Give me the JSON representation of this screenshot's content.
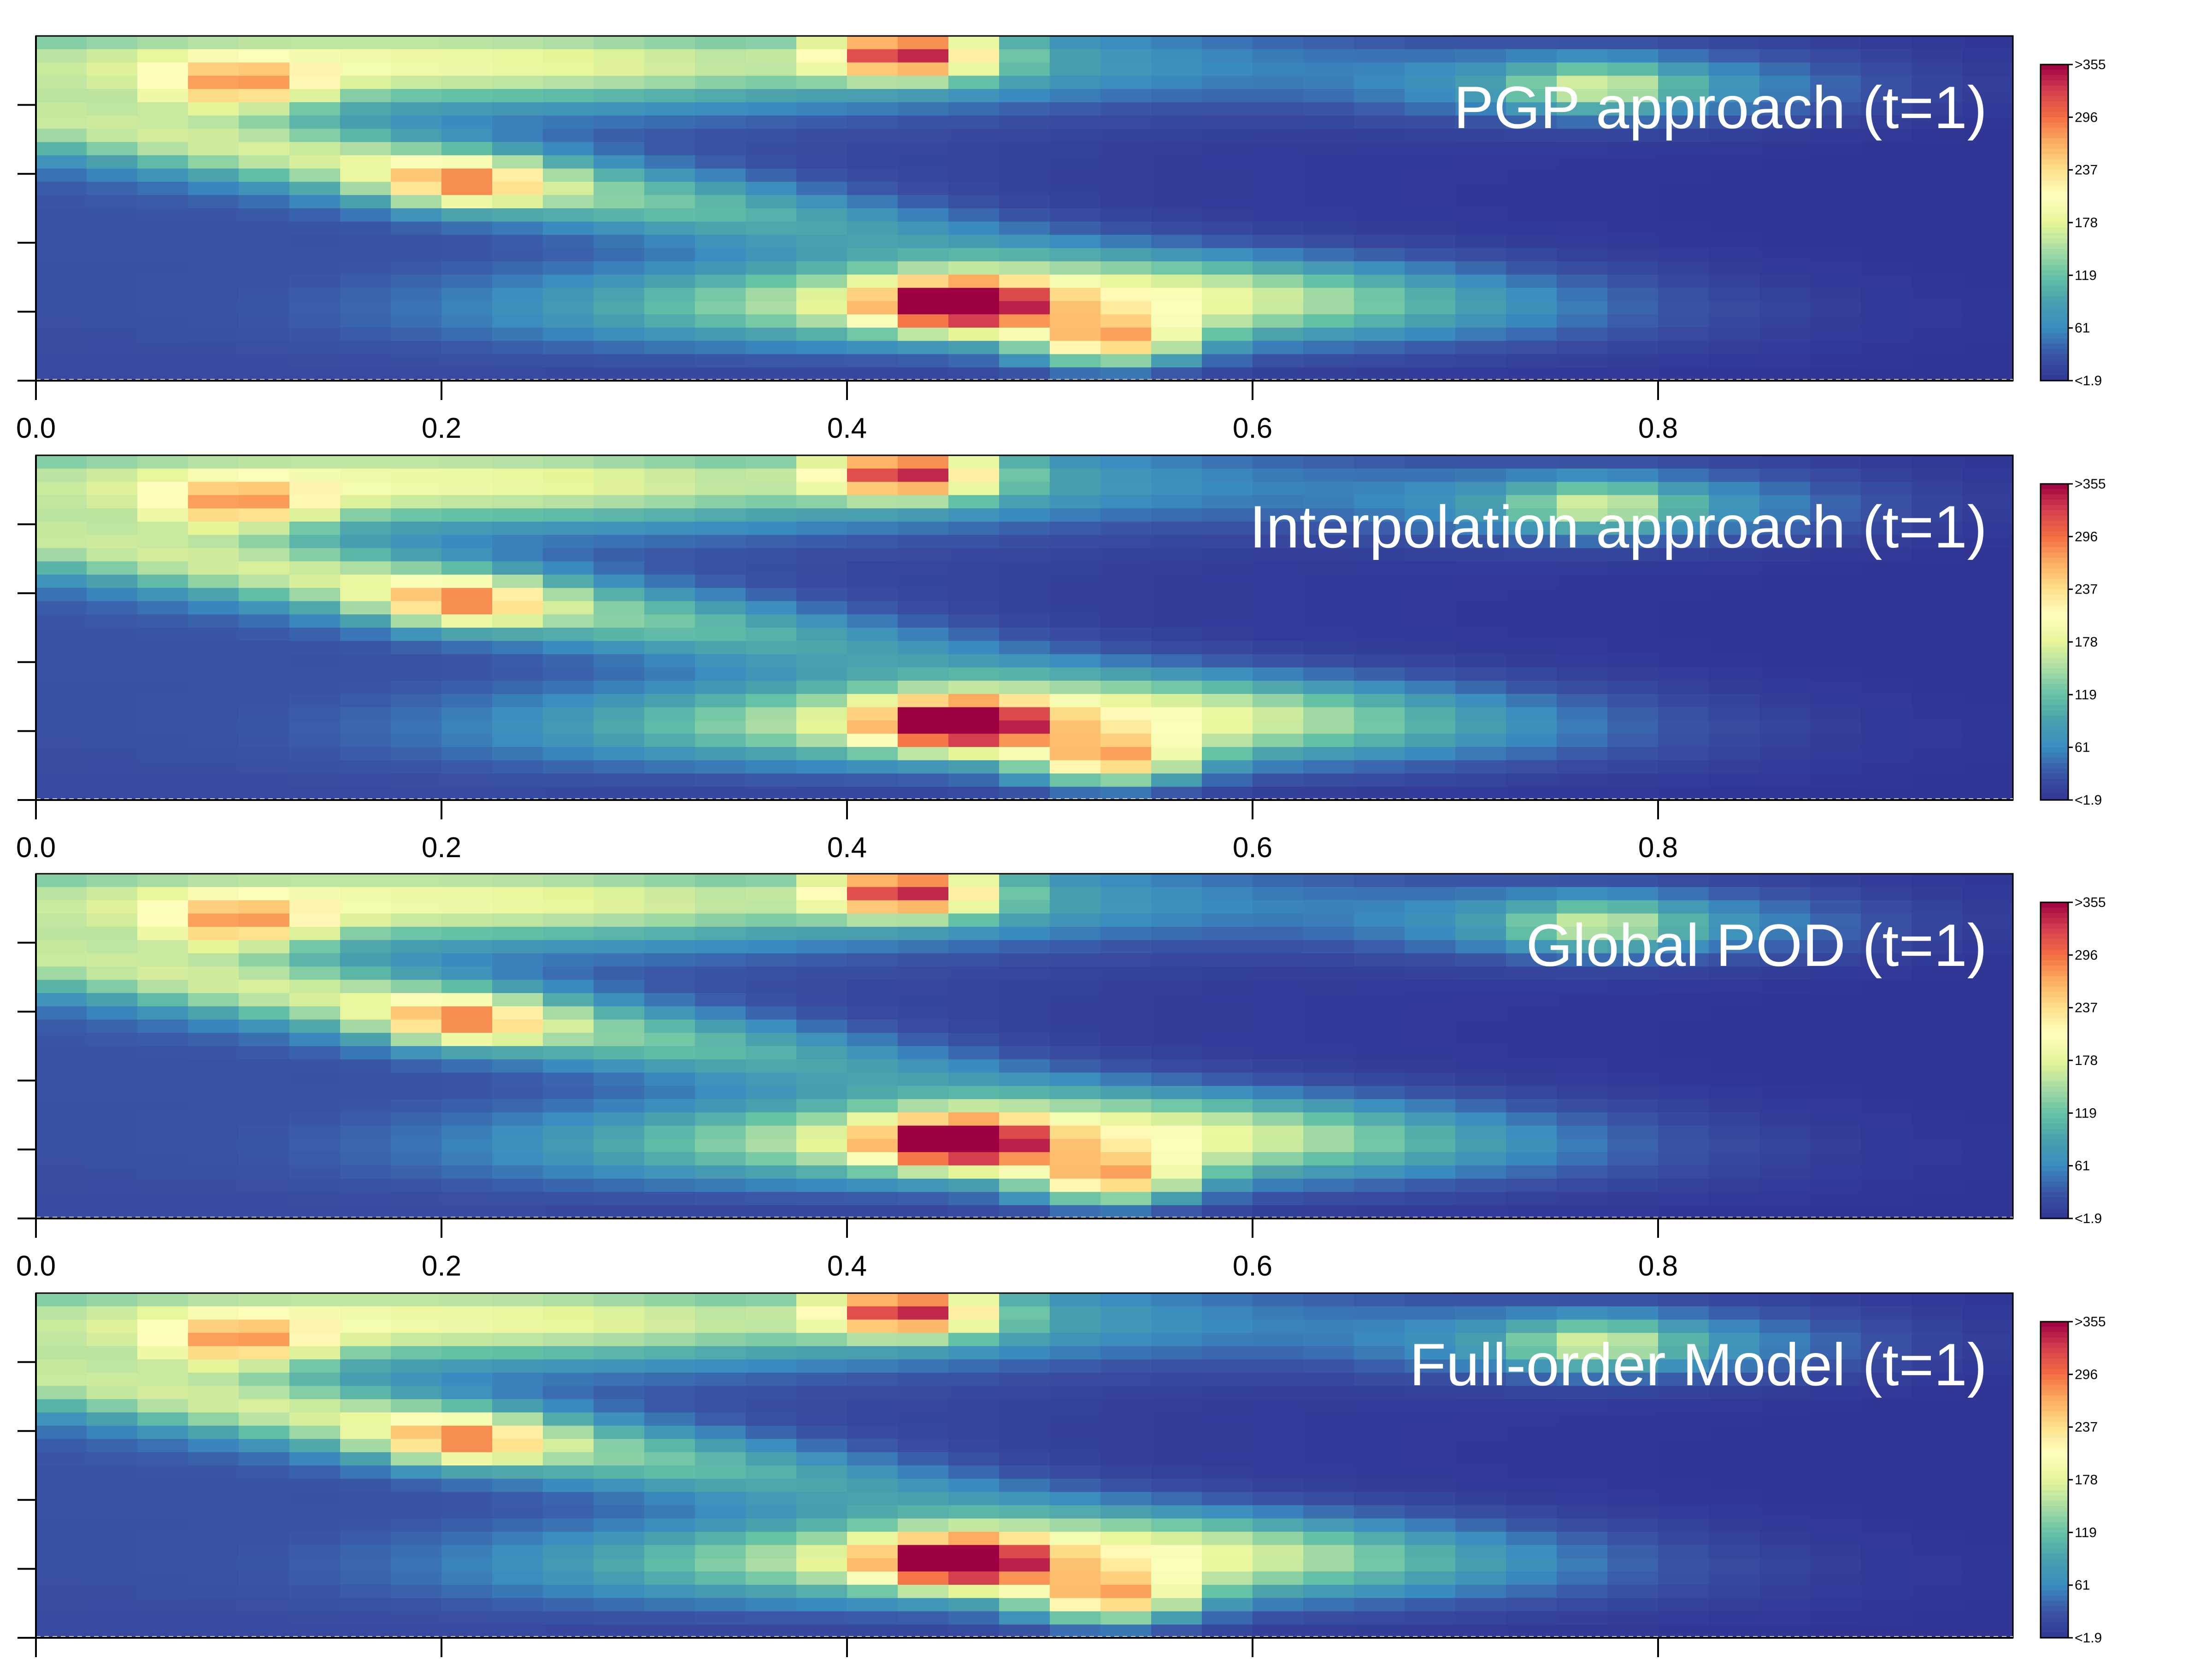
{
  "chart_data": [
    {
      "type": "heatmap",
      "title": "PGP approach (t=1)",
      "colorbar_ticks": [
        ">355",
        "296",
        "237",
        "178",
        "119",
        "61",
        "<1.9"
      ],
      "x_ticks": [
        "0.0",
        "0.2",
        "0.4",
        "0.6",
        "0.8"
      ],
      "xlim": [
        0,
        0.975
      ],
      "value_range": [
        1.9,
        355
      ],
      "hotspots": [
        {
          "x": 0.455,
          "y": 0.22,
          "value": 355
        },
        {
          "x": 0.43,
          "y": 0.95,
          "value": 330
        },
        {
          "x": 0.53,
          "y": 0.11,
          "value": 270
        },
        {
          "x": 0.21,
          "y": 0.57,
          "value": 200
        },
        {
          "x": 0.1,
          "y": 0.85,
          "value": 190
        },
        {
          "x": 0.77,
          "y": 0.85,
          "value": 120
        }
      ]
    },
    {
      "type": "heatmap",
      "title": "Interpolation approach (t=1)",
      "colorbar_ticks": [
        ">355",
        "296",
        "237",
        "178",
        "119",
        "61",
        "<1.9"
      ],
      "x_ticks": [
        "0.0",
        "0.2",
        "0.4",
        "0.6",
        "0.8"
      ],
      "xlim": [
        0,
        0.975
      ],
      "value_range": [
        1.9,
        355
      ],
      "hotspots": [
        {
          "x": 0.455,
          "y": 0.22,
          "value": 355
        },
        {
          "x": 0.43,
          "y": 0.95,
          "value": 330
        },
        {
          "x": 0.53,
          "y": 0.11,
          "value": 270
        },
        {
          "x": 0.21,
          "y": 0.57,
          "value": 200
        },
        {
          "x": 0.1,
          "y": 0.85,
          "value": 190
        },
        {
          "x": 0.77,
          "y": 0.85,
          "value": 120
        }
      ]
    },
    {
      "type": "heatmap",
      "title": "Global POD (t=1)",
      "colorbar_ticks": [
        ">355",
        "296",
        "237",
        "178",
        "119",
        "61",
        "<1.9"
      ],
      "x_ticks": [
        "0.0",
        "0.2",
        "0.4",
        "0.6",
        "0.8"
      ],
      "xlim": [
        0,
        0.975
      ],
      "value_range": [
        1.9,
        355
      ],
      "hotspots": [
        {
          "x": 0.455,
          "y": 0.22,
          "value": 355
        },
        {
          "x": 0.43,
          "y": 0.95,
          "value": 330
        },
        {
          "x": 0.53,
          "y": 0.11,
          "value": 270
        },
        {
          "x": 0.21,
          "y": 0.57,
          "value": 200
        },
        {
          "x": 0.1,
          "y": 0.85,
          "value": 190
        },
        {
          "x": 0.77,
          "y": 0.85,
          "value": 110
        }
      ]
    },
    {
      "type": "heatmap",
      "title": "Full-order Model (t=1)",
      "colorbar_ticks": [
        ">355",
        "296",
        "237",
        "178",
        "119",
        "61",
        "<1.9"
      ],
      "x_ticks": [
        "0.0",
        "0.2",
        "0.4",
        "0.6",
        "0.8"
      ],
      "xlim": [
        0,
        0.975
      ],
      "value_range": [
        1.9,
        355
      ],
      "hotspots": [
        {
          "x": 0.455,
          "y": 0.22,
          "value": 355
        },
        {
          "x": 0.43,
          "y": 0.95,
          "value": 330
        },
        {
          "x": 0.53,
          "y": 0.11,
          "value": 270
        },
        {
          "x": 0.21,
          "y": 0.57,
          "value": 200
        },
        {
          "x": 0.1,
          "y": 0.85,
          "value": 190
        },
        {
          "x": 0.77,
          "y": 0.85,
          "value": 120
        }
      ]
    }
  ],
  "colors": {
    "scale": [
      "#313695",
      "#3a56a5",
      "#3a8cc0",
      "#4aa0ad",
      "#66c2a5",
      "#abdda4",
      "#e6f598",
      "#ffffbf",
      "#fee08b",
      "#fdae61",
      "#f46d43",
      "#d53e4f",
      "#9e0142"
    ]
  }
}
